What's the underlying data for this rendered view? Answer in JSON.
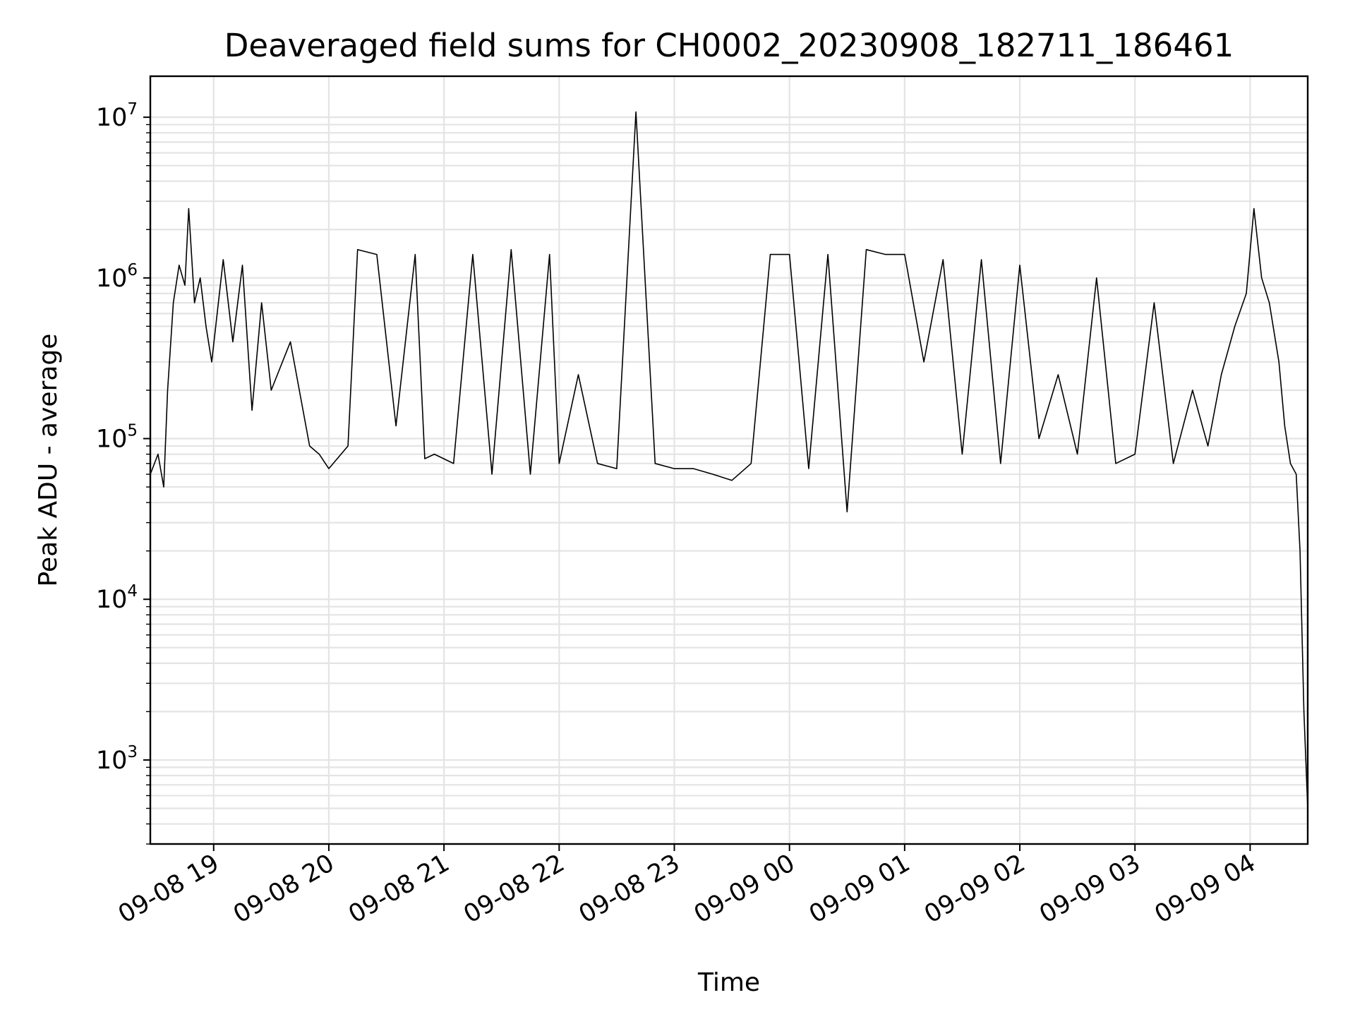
{
  "chart_data": {
    "type": "line",
    "title": "Deaveraged field sums for CH0002_20230908_182711_186461",
    "xlabel": "Time",
    "ylabel": "Peak ADU - average",
    "yscale": "log",
    "ylim": [
      300,
      18000000
    ],
    "xlim": [
      "2023-09-08 18:27",
      "2023-09-09 04:30"
    ],
    "grid": true,
    "x_ticks": [
      "09-08 19",
      "09-08 20",
      "09-08 21",
      "09-08 22",
      "09-08 23",
      "09-09 00",
      "09-09 01",
      "09-09 02",
      "09-09 03",
      "09-09 04"
    ],
    "y_ticks": [
      {
        "base": "10",
        "exp": "3",
        "value": 1000
      },
      {
        "base": "10",
        "exp": "4",
        "value": 10000
      },
      {
        "base": "10",
        "exp": "5",
        "value": 100000
      },
      {
        "base": "10",
        "exp": "6",
        "value": 1000000
      },
      {
        "base": "10",
        "exp": "7",
        "value": 10000000
      }
    ],
    "line_color": "#000000",
    "series": [
      {
        "x": [
          "2023-09-08 18:27",
          "2023-09-08 18:31",
          "2023-09-08 18:34",
          "2023-09-08 18:36",
          "2023-09-08 18:39",
          "2023-09-08 18:42",
          "2023-09-08 18:45",
          "2023-09-08 18:47",
          "2023-09-08 18:50",
          "2023-09-08 18:53",
          "2023-09-08 18:56",
          "2023-09-08 18:59",
          "2023-09-08 19:05",
          "2023-09-08 19:10",
          "2023-09-08 19:15",
          "2023-09-08 19:20",
          "2023-09-08 19:25",
          "2023-09-08 19:30",
          "2023-09-08 19:40",
          "2023-09-08 19:50",
          "2023-09-08 19:55",
          "2023-09-08 20:00",
          "2023-09-08 20:10",
          "2023-09-08 20:15",
          "2023-09-08 20:25",
          "2023-09-08 20:35",
          "2023-09-08 20:45",
          "2023-09-08 20:50",
          "2023-09-08 20:55",
          "2023-09-08 21:05",
          "2023-09-08 21:15",
          "2023-09-08 21:25",
          "2023-09-08 21:35",
          "2023-09-08 21:45",
          "2023-09-08 21:55",
          "2023-09-08 22:00",
          "2023-09-08 22:10",
          "2023-09-08 22:20",
          "2023-09-08 22:30",
          "2023-09-08 22:40",
          "2023-09-08 22:50",
          "2023-09-08 23:00",
          "2023-09-08 23:10",
          "2023-09-08 23:20",
          "2023-09-08 23:30",
          "2023-09-08 23:40",
          "2023-09-08 23:50",
          "2023-09-09 00:00",
          "2023-09-09 00:10",
          "2023-09-09 00:20",
          "2023-09-09 00:30",
          "2023-09-09 00:40",
          "2023-09-09 00:50",
          "2023-09-09 01:00",
          "2023-09-09 01:10",
          "2023-09-09 01:20",
          "2023-09-09 01:30",
          "2023-09-09 01:40",
          "2023-09-09 01:50",
          "2023-09-09 02:00",
          "2023-09-09 02:10",
          "2023-09-09 02:20",
          "2023-09-09 02:30",
          "2023-09-09 02:40",
          "2023-09-09 02:50",
          "2023-09-09 03:00",
          "2023-09-09 03:10",
          "2023-09-09 03:20",
          "2023-09-09 03:30",
          "2023-09-09 03:38",
          "2023-09-09 03:45",
          "2023-09-09 03:52",
          "2023-09-09 03:58",
          "2023-09-09 04:02",
          "2023-09-09 04:06",
          "2023-09-09 04:10",
          "2023-09-09 04:15",
          "2023-09-09 04:18",
          "2023-09-09 04:21",
          "2023-09-09 04:24",
          "2023-09-09 04:26",
          "2023-09-09 04:28",
          "2023-09-09 04:30"
        ],
        "y": [
          60000,
          80000,
          50000,
          200000,
          700000,
          1200000,
          900000,
          2700000,
          700000,
          1000000,
          500000,
          300000,
          1300000,
          400000,
          1200000,
          150000,
          700000,
          200000,
          400000,
          90000,
          80000,
          65000,
          90000,
          1500000,
          1400000,
          120000,
          1400000,
          75000,
          80000,
          70000,
          1400000,
          60000,
          1500000,
          60000,
          1400000,
          70000,
          250000,
          70000,
          65000,
          10800000,
          70000,
          65000,
          65000,
          60000,
          55000,
          70000,
          1400000,
          1400000,
          65000,
          1400000,
          35000,
          1500000,
          1400000,
          1400000,
          300000,
          1300000,
          80000,
          1300000,
          70000,
          1200000,
          100000,
          250000,
          80000,
          1000000,
          70000,
          80000,
          700000,
          70000,
          200000,
          90000,
          250000,
          500000,
          800000,
          2700000,
          1000000,
          700000,
          300000,
          120000,
          70000,
          60000,
          20000,
          2000,
          500
        ]
      }
    ]
  }
}
